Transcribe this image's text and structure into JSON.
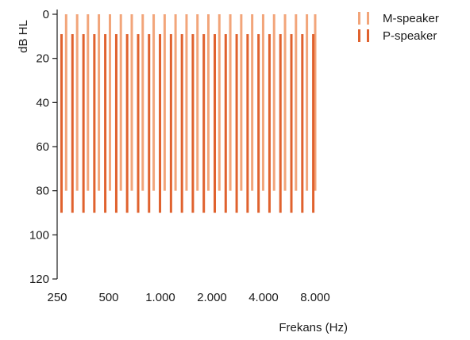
{
  "chart_data": {
    "type": "bar",
    "ylabel": "dB HL",
    "xlabel": "Frekans (Hz)",
    "ylim": [
      0,
      120
    ],
    "y_inverted": true,
    "y_ticks": [
      "0",
      "20",
      "40",
      "60",
      "80",
      "100",
      "120"
    ],
    "x_log_scale": true,
    "x_range_hz": [
      250,
      10000
    ],
    "x_tick_values": [
      250,
      500,
      1000,
      2000,
      4000,
      8000
    ],
    "x_tick_labels": [
      "250",
      "500",
      "1.000",
      "2.000",
      "4.000",
      "8.000"
    ],
    "grid": false,
    "legend_position": "top-right",
    "series": [
      {
        "name": "M-speaker",
        "color": "#f2a57a",
        "frequencies_hz": [
          282,
          327,
          378,
          438,
          508,
          588,
          681,
          789,
          914,
          1059,
          1226,
          1421,
          1646,
          1906,
          2208,
          2558,
          2963,
          3432,
          3976,
          4606,
          5336,
          6181,
          7160,
          8000
        ],
        "level_from_db": 0,
        "level_to_db": 80
      },
      {
        "name": "P-speaker",
        "color": "#e0622e",
        "frequencies_hz": [
          265,
          307,
          356,
          412,
          477,
          553,
          640,
          742,
          859,
          995,
          1153,
          1336,
          1547,
          1792,
          2076,
          2405,
          2786,
          3227,
          3738,
          4330,
          5016,
          5810,
          6731,
          7798
        ],
        "level_from_db": 9,
        "level_to_db": 90
      }
    ]
  }
}
